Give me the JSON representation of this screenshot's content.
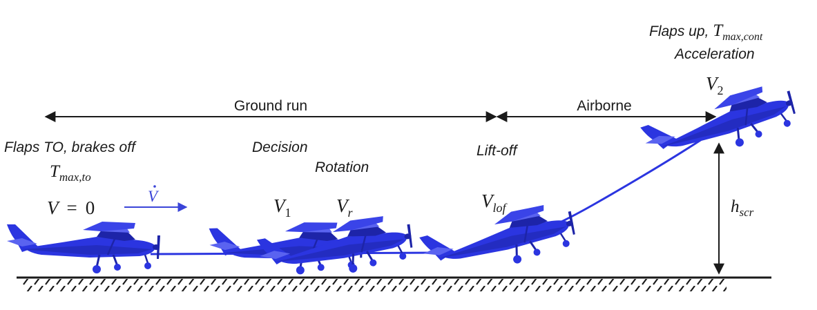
{
  "spans": {
    "ground_run": "Ground run",
    "airborne": "Airborne"
  },
  "phases": {
    "start_line1": "Flaps TO, brakes off",
    "start_line2_base": "T",
    "start_line2_sub": "max,to",
    "v_zero_lhs": "V",
    "v_zero_eq": "=",
    "v_zero_rhs": "0",
    "accel_symbol": "V",
    "decision": "Decision",
    "v1_base": "V",
    "v1_sub": "1",
    "rotation": "Rotation",
    "vr_base": "V",
    "vr_sub": "r",
    "liftoff": "Lift-off",
    "vlof_base": "V",
    "vlof_sub": "lof",
    "climb_line1_text": "Flaps up, ",
    "climb_line1_base": "T",
    "climb_line1_sub": "max,cont",
    "climb_line2": "Acceleration",
    "v2_base": "V",
    "v2_sub": "2",
    "hscr_base": "h",
    "hscr_sub": "scr"
  },
  "colors": {
    "aircraft": "#2b35e0",
    "aircraft_dark": "#1d24a8",
    "aircraft_light": "#5a63f0",
    "arrows": "#1a1a1a",
    "accel_arrow": "#3a44d8"
  }
}
